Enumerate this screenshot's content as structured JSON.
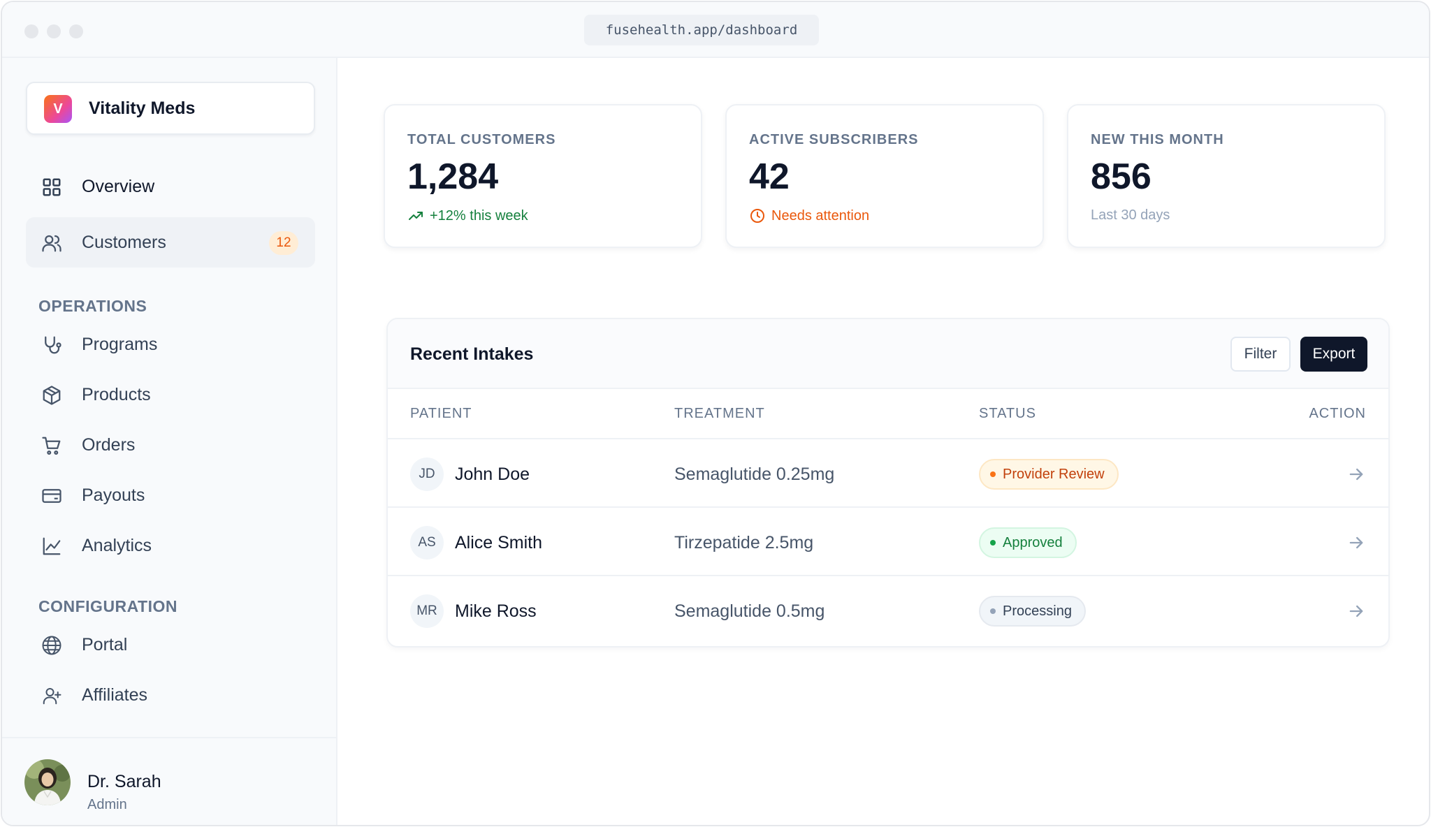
{
  "browser": {
    "url": "fusehealth.app/dashboard"
  },
  "brand": {
    "logo_letter": "V",
    "name": "Vitality Meds"
  },
  "nav": {
    "overview": {
      "label": "Overview",
      "icon": "grid-icon"
    },
    "customers": {
      "label": "Customers",
      "icon": "users-icon",
      "badge": "12"
    },
    "operations_heading": "OPERATIONS",
    "operations": [
      {
        "label": "Programs",
        "icon": "stethoscope-icon"
      },
      {
        "label": "Products",
        "icon": "box-icon"
      },
      {
        "label": "Orders",
        "icon": "cart-icon"
      },
      {
        "label": "Payouts",
        "icon": "credit-card-icon"
      },
      {
        "label": "Analytics",
        "icon": "chart-line-icon"
      }
    ],
    "configuration_heading": "CONFIGURATION",
    "configuration": [
      {
        "label": "Portal",
        "icon": "globe-icon"
      },
      {
        "label": "Affiliates",
        "icon": "user-plus-icon"
      }
    ]
  },
  "user": {
    "name": "Dr. Sarah",
    "role": "Admin"
  },
  "stats": [
    {
      "label": "TOTAL CUSTOMERS",
      "value": "1,284",
      "sub": "+12% this week",
      "sub_color": "#15803d",
      "icon": "trending-up-icon"
    },
    {
      "label": "ACTIVE SUBSCRIBERS",
      "value": "42",
      "sub": "Needs attention",
      "sub_color": "#ea580c",
      "icon": "clock-icon"
    },
    {
      "label": "NEW THIS MONTH",
      "value": "856",
      "sub": "Last 30 days",
      "sub_color": "#94a3b8"
    }
  ],
  "intakes": {
    "title": "Recent Intakes",
    "filter_label": "Filter",
    "export_label": "Export",
    "columns": {
      "patient": "PATIENT",
      "treatment": "TREATMENT",
      "status": "STATUS",
      "action": "ACTION"
    },
    "rows": [
      {
        "initials": "JD",
        "name": "John Doe",
        "treatment": "Semaglutide 0.25mg",
        "status": "Provider Review"
      },
      {
        "initials": "AS",
        "name": "Alice Smith",
        "treatment": "Tirzepatide 2.5mg",
        "status": "Approved"
      },
      {
        "initials": "MR",
        "name": "Mike Ross",
        "treatment": "Semaglutide 0.5mg",
        "status": "Processing"
      }
    ]
  },
  "colors": {
    "accent_dark": "#0f172a",
    "review": "#f97316",
    "approved": "#16a34a",
    "processing": "#94a3b8"
  }
}
